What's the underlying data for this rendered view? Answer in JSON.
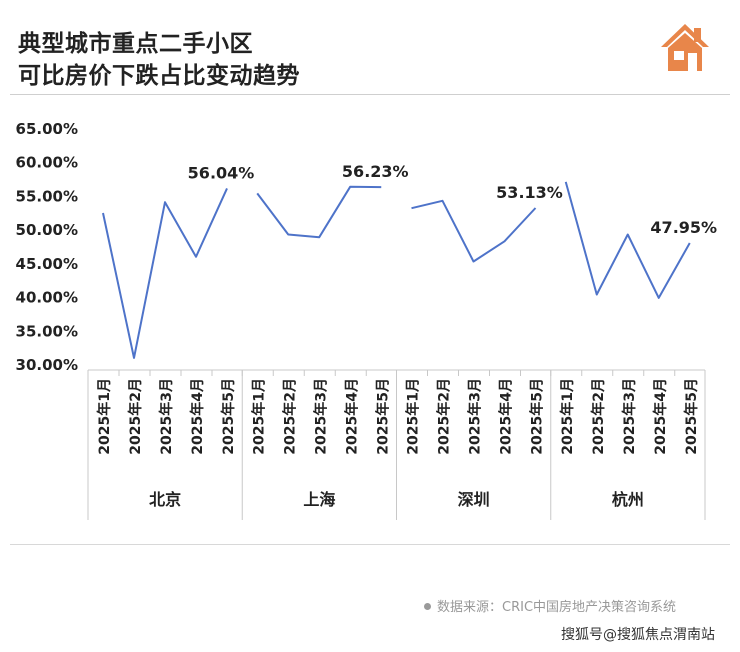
{
  "title_line1": "典型城市重点二手小区",
  "title_line2": "可比房价下跌占比变动趋势",
  "logo_icon": "house-icon",
  "source_text": "数据来源：CRIC中国房地产决策咨询系统",
  "watermark_text": "搜狐号@搜狐焦点渭南站",
  "chart_data": {
    "type": "line",
    "ylim": [
      30,
      65
    ],
    "yticks": [
      "65.00%",
      "60.00%",
      "55.00%",
      "50.00%",
      "45.00%",
      "40.00%",
      "35.00%",
      "30.00%"
    ],
    "ytick_values": [
      65,
      60,
      55,
      50,
      45,
      40,
      35,
      30
    ],
    "months": [
      "2025年1月",
      "2025年2月",
      "2025年3月",
      "2025年4月",
      "2025年5月"
    ],
    "line_color": "#4e73c9",
    "groups": [
      {
        "name": "北京",
        "values": [
          52.4,
          30.9,
          54.0,
          45.9,
          56.04
        ],
        "label": "56.04%"
      },
      {
        "name": "上海",
        "values": [
          55.3,
          49.2,
          48.8,
          56.3,
          56.23
        ],
        "label": "56.23%"
      },
      {
        "name": "深圳",
        "values": [
          53.1,
          54.2,
          45.2,
          48.2,
          53.13
        ],
        "label": "53.13%"
      },
      {
        "name": "杭州",
        "values": [
          57.0,
          40.3,
          49.2,
          39.8,
          47.95
        ],
        "label": "47.95%"
      }
    ]
  }
}
